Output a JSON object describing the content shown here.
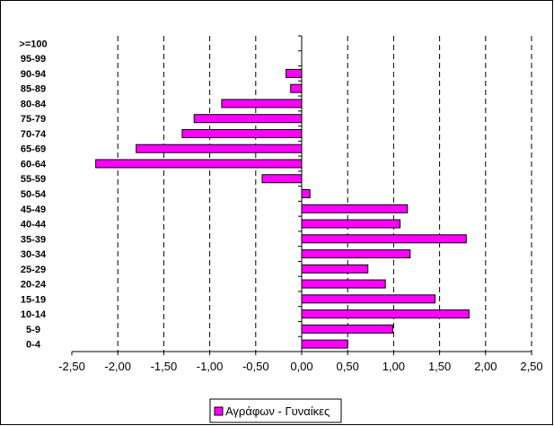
{
  "chart_data": {
    "type": "bar",
    "orientation": "horizontal",
    "categories": [
      "0-4",
      "5-9",
      "10-14",
      "15-19",
      "20-24",
      "25-29",
      "30-34",
      "35-39",
      "40-44",
      "45-49",
      "50-54",
      "55-59",
      "60-64",
      "65-69",
      "70-74",
      "75-79",
      "80-84",
      "85-89",
      "90-94",
      "95-99",
      ">=100"
    ],
    "series": [
      {
        "name": "Αγράφων - Γυναίκες",
        "values": [
          0.5,
          0.99,
          1.82,
          1.45,
          0.91,
          0.72,
          1.18,
          1.79,
          1.07,
          1.15,
          0.09,
          -0.43,
          -2.24,
          -1.8,
          -1.3,
          -1.17,
          -0.87,
          -0.12,
          -0.17,
          0.0,
          0.0
        ],
        "color": "#ff00ff"
      }
    ],
    "xlim": [
      -2.5,
      2.5
    ],
    "x_ticks": [
      -2.5,
      -2.0,
      -1.5,
      -1.0,
      -0.5,
      0.0,
      0.5,
      1.0,
      1.5,
      2.0,
      2.5
    ],
    "x_tick_labels": [
      "-2,50",
      "-2,00",
      "-1,50",
      "-1,00",
      "-0,50",
      "0,00",
      "0,50",
      "1,00",
      "1,50",
      "2,00",
      "2,50"
    ],
    "grid": "vertical dashed",
    "legend": {
      "position": "bottom-center",
      "label": "Αγράφων - Γυναίκες"
    },
    "title": "",
    "xlabel": "",
    "ylabel": ""
  }
}
